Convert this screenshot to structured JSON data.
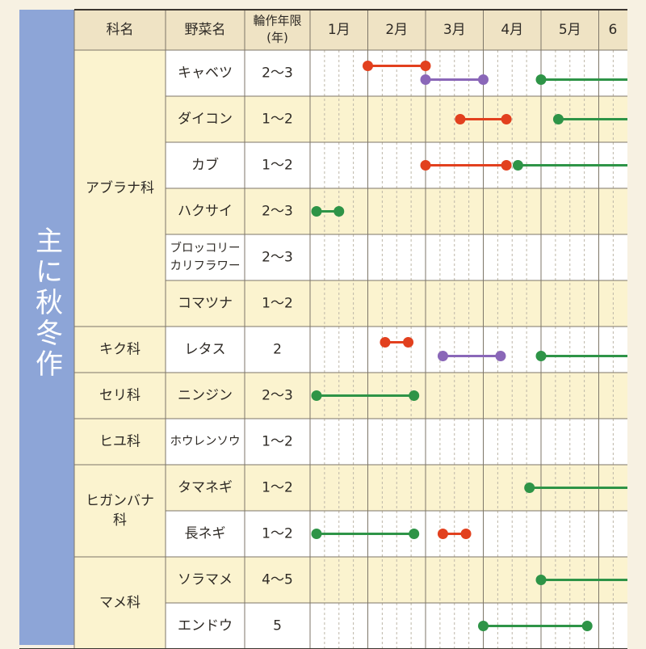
{
  "side_label": "主に秋冬作",
  "headers": {
    "family": "科名",
    "vegetable": "野菜名",
    "rotation_line1": "輪作年限",
    "rotation_line2": "(年)",
    "months": [
      "1月",
      "2月",
      "3月",
      "4月",
      "5月",
      "6"
    ]
  },
  "families": [
    {
      "lines": [
        "アブラナ科"
      ],
      "rows": 6
    },
    {
      "lines": [
        "キク科"
      ],
      "rows": 1
    },
    {
      "lines": [
        "セリ科"
      ],
      "rows": 1
    },
    {
      "lines": [
        "ヒユ科"
      ],
      "rows": 1
    },
    {
      "lines": [
        "ヒガンバナ",
        "科"
      ],
      "rows": 2
    },
    {
      "lines": [
        "マメ科"
      ],
      "rows": 2
    }
  ],
  "vegetables": [
    {
      "name": [
        "キャベツ"
      ],
      "years": "2～3"
    },
    {
      "name": [
        "ダイコン"
      ],
      "years": "1～2"
    },
    {
      "name": [
        "カブ"
      ],
      "years": "1～2"
    },
    {
      "name": [
        "ハクサイ"
      ],
      "years": "2～3"
    },
    {
      "name": [
        "ブロッコリー",
        "カリフラワー"
      ],
      "years": "2～3"
    },
    {
      "name": [
        "コマツナ"
      ],
      "years": "1～2"
    },
    {
      "name": [
        "レタス"
      ],
      "years": "2"
    },
    {
      "name": [
        "ニンジン"
      ],
      "years": "2～3"
    },
    {
      "name": [
        "ホウレンソウ"
      ],
      "years": "1～2"
    },
    {
      "name": [
        "タマネギ"
      ],
      "years": "1～2"
    },
    {
      "name": [
        "長ネギ"
      ],
      "years": "1～2"
    },
    {
      "name": [
        "ソラマメ"
      ],
      "years": "4～5"
    },
    {
      "name": [
        "エンドウ"
      ],
      "years": "5"
    }
  ],
  "colors": {
    "red": "#e2401e",
    "purple": "#8a67b8",
    "green": "#2e9447",
    "row_tint": "#fbf3cf",
    "row_plain": "#ffffff",
    "header_bg": "#efe3c4",
    "side_band": "#8da5d7"
  },
  "schedule": [
    {
      "row": 0,
      "color": "red",
      "start": 2.0,
      "end": 3.0
    },
    {
      "row": 0,
      "color": "purple",
      "start": 3.0,
      "end": 4.0
    },
    {
      "row": 0,
      "color": "green",
      "start": 5.0,
      "end": 5.7,
      "open_end": true
    },
    {
      "row": 1,
      "color": "red",
      "start": 3.6,
      "end": 4.4
    },
    {
      "row": 1,
      "color": "green",
      "start": 5.3,
      "end": 5.7,
      "open_end": true
    },
    {
      "row": 2,
      "color": "red",
      "start": 3.0,
      "end": 4.4
    },
    {
      "row": 2,
      "color": "green",
      "start": 4.6,
      "end": 5.7,
      "open_end": true
    },
    {
      "row": 3,
      "color": "green",
      "start": 1.0,
      "end": 1.5
    },
    {
      "row": 6,
      "color": "red",
      "start": 2.3,
      "end": 2.7
    },
    {
      "row": 6,
      "color": "purple",
      "start": 3.3,
      "end": 4.3
    },
    {
      "row": 6,
      "color": "green",
      "start": 5.0,
      "end": 5.7,
      "open_end": true
    },
    {
      "row": 7,
      "color": "green",
      "start": 1.0,
      "end": 2.8
    },
    {
      "row": 9,
      "color": "green",
      "start": 4.8,
      "end": 5.7,
      "open_end": true
    },
    {
      "row": 10,
      "color": "green",
      "start": 1.0,
      "end": 2.8
    },
    {
      "row": 10,
      "color": "red",
      "start": 3.3,
      "end": 3.7
    },
    {
      "row": 11,
      "color": "green",
      "start": 5.0,
      "end": 5.7,
      "open_end": true
    },
    {
      "row": 12,
      "color": "green",
      "start": 4.0,
      "end": 5.8
    }
  ]
}
